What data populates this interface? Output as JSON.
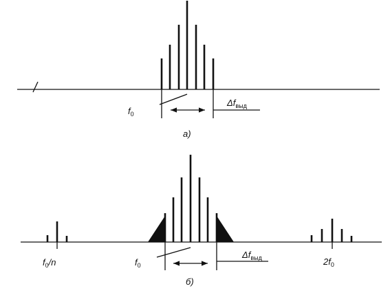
{
  "figure_a": {
    "f0_label": {
      "main": "f",
      "sub": "0"
    },
    "bandwidth_label": {
      "main": "Δf",
      "sub": "выд"
    },
    "caption": "а)"
  },
  "figure_b": {
    "subharmonic_label": {
      "main": "f",
      "sub": "0",
      "suffix": "/n"
    },
    "f0_label": {
      "main": "f",
      "sub": "0"
    },
    "bandwidth_label": {
      "main": "Δf",
      "sub": "выд"
    },
    "harmonic_label": {
      "prefix": "2f",
      "sub": "0"
    },
    "caption": "б)"
  }
}
